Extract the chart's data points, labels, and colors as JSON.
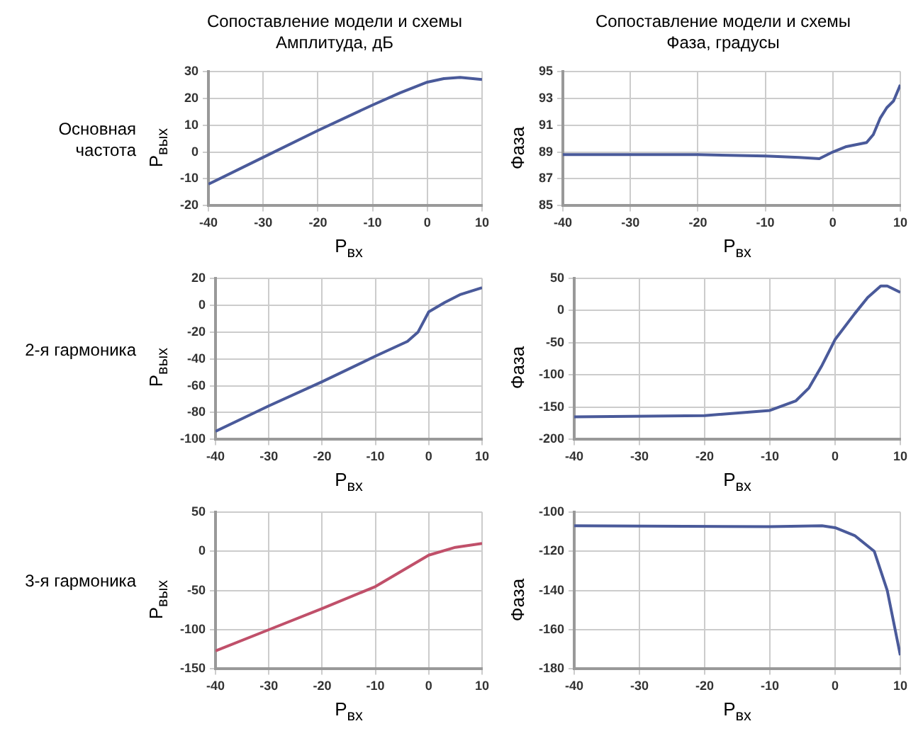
{
  "chart_data": [
    {
      "type": "line",
      "title": "Сопоставление модели и схемы",
      "subtitle": "Амплитуда, дБ",
      "annotations": [
        "Основная частота"
      ],
      "xlabel": "P$_{вх}$",
      "ylabel": "P$_{вых}$",
      "grid": true,
      "xlim": [
        -40,
        10
      ],
      "xticks": [
        -40,
        -30,
        -20,
        -10,
        0,
        10
      ],
      "ylim": [
        -20,
        30
      ],
      "yticks": [
        -20,
        -10,
        0,
        10,
        20,
        30
      ],
      "series": [
        {
          "color": "#4a5a9a",
          "x": [
            -40,
            -30,
            -20,
            -10,
            -5,
            0,
            3,
            6,
            10
          ],
          "values": [
            -12,
            -2,
            8,
            17.5,
            22,
            26,
            27.3,
            27.8,
            27
          ]
        }
      ]
    },
    {
      "type": "line",
      "title": "Сопоставление модели и схемы",
      "subtitle": "Фаза, градусы",
      "xlabel": "P$_{вх}$",
      "ylabel": "Фаза",
      "grid": true,
      "xlim": [
        -40,
        10
      ],
      "xticks": [
        -40,
        -30,
        -20,
        -10,
        0,
        10
      ],
      "ylim": [
        85,
        95
      ],
      "yticks": [
        85,
        87,
        89,
        91,
        93,
        95
      ],
      "series": [
        {
          "color": "#4a5a9a",
          "x": [
            -40,
            -30,
            -20,
            -10,
            -5,
            -2,
            0,
            2,
            5,
            6,
            7,
            8,
            9,
            10
          ],
          "values": [
            88.8,
            88.8,
            88.8,
            88.7,
            88.6,
            88.5,
            89,
            89.4,
            89.7,
            90.3,
            91.5,
            92.3,
            92.8,
            94
          ]
        }
      ]
    },
    {
      "type": "line",
      "annotations": [
        "2-я гармоника"
      ],
      "xlabel": "P$_{вх}$",
      "ylabel": "P$_{вых}$",
      "grid": true,
      "xlim": [
        -40,
        10
      ],
      "xticks": [
        -40,
        -30,
        -20,
        -10,
        0,
        10
      ],
      "ylim": [
        -100,
        20
      ],
      "yticks": [
        -100,
        -80,
        -60,
        -40,
        -20,
        0,
        20
      ],
      "series": [
        {
          "color": "#4a5a9a",
          "x": [
            -40,
            -30,
            -20,
            -10,
            -4,
            -2,
            0,
            3,
            6,
            10
          ],
          "values": [
            -94,
            -75,
            -57,
            -38,
            -27,
            -20,
            -5,
            2,
            8,
            13
          ]
        }
      ]
    },
    {
      "type": "line",
      "xlabel": "P$_{вх}$",
      "ylabel": "Фаза",
      "grid": true,
      "xlim": [
        -40,
        10
      ],
      "xticks": [
        -40,
        -30,
        -20,
        -10,
        0,
        10
      ],
      "ylim": [
        -200,
        50
      ],
      "yticks": [
        -200,
        -150,
        -100,
        -50,
        0,
        50
      ],
      "series": [
        {
          "color": "#4a5a9a",
          "x": [
            -40,
            -20,
            -10,
            -6,
            -4,
            -2,
            0,
            3,
            5,
            7,
            8,
            10
          ],
          "values": [
            -165,
            -163,
            -155,
            -140,
            -120,
            -85,
            -45,
            -5,
            20,
            38,
            38,
            28
          ]
        }
      ]
    },
    {
      "type": "line",
      "annotations": [
        "3-я гармоника"
      ],
      "xlabel": "P$_{вх}$",
      "ylabel": "P$_{вых}$",
      "grid": true,
      "xlim": [
        -40,
        10
      ],
      "xticks": [
        -40,
        -30,
        -20,
        -10,
        0,
        10
      ],
      "ylim": [
        -150,
        50
      ],
      "yticks": [
        -150,
        -100,
        -50,
        0,
        50
      ],
      "series": [
        {
          "color": "#c0506a",
          "x": [
            -40,
            -30,
            -20,
            -10,
            0,
            5,
            10
          ],
          "values": [
            -127,
            -100,
            -73,
            -45,
            -5,
            5,
            10
          ]
        }
      ]
    },
    {
      "type": "line",
      "xlabel": "P$_{вх}$",
      "ylabel": "Фаза",
      "grid": true,
      "xlim": [
        -40,
        10
      ],
      "xticks": [
        -40,
        -30,
        -20,
        -10,
        0,
        10
      ],
      "ylim": [
        -180,
        -100
      ],
      "yticks": [
        -180,
        -160,
        -140,
        -120,
        -100
      ],
      "series": [
        {
          "color": "#4a5a9a",
          "x": [
            -40,
            -10,
            -2,
            0,
            3,
            6,
            8,
            10
          ],
          "values": [
            -107,
            -107.5,
            -107,
            -108,
            -112,
            -120,
            -140,
            -173
          ]
        }
      ]
    }
  ]
}
